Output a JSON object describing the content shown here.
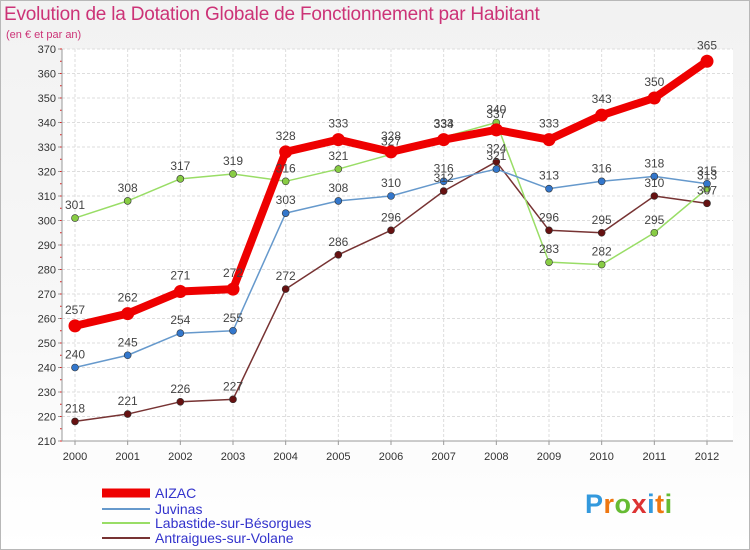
{
  "header": {
    "title": "Evolution de la Dotation Globale de Fonctionnement par Habitant",
    "subtitle": "(en € et par an)"
  },
  "brand": {
    "name": "Proxiti"
  },
  "chart_data": {
    "type": "line",
    "title": "Evolution de la Dotation Globale de Fonctionnement par Habitant",
    "subtitle": "(en € et par an)",
    "xlabel": "",
    "ylabel": "",
    "x": [
      "2000",
      "2001",
      "2002",
      "2003",
      "2004",
      "2005",
      "2006",
      "2007",
      "2008",
      "2009",
      "2010",
      "2011",
      "2012"
    ],
    "ylim": [
      210,
      370
    ],
    "yticks": [
      210,
      220,
      230,
      240,
      250,
      260,
      270,
      280,
      290,
      300,
      310,
      320,
      330,
      340,
      350,
      360,
      370
    ],
    "grid": true,
    "legend_position": "bottom-left",
    "series": [
      {
        "name": "AIZAC",
        "color": "#ee0000",
        "values": [
          257,
          262,
          271,
          272,
          328,
          333,
          328,
          333,
          337,
          333,
          343,
          350,
          365
        ],
        "labels": [
          "257",
          "262",
          "271",
          "272",
          "328",
          "333",
          "328",
          "333",
          "337",
          "333",
          "343",
          "350",
          "365"
        ]
      },
      {
        "name": "Juvinas",
        "color": "#6699cc",
        "values": [
          240,
          245,
          254,
          255,
          303,
          308,
          310,
          316,
          321,
          313,
          316,
          318,
          315
        ],
        "labels": [
          "240",
          "245",
          "254",
          "255",
          "303",
          "308",
          "310",
          "316",
          "321",
          "313",
          "316",
          "318",
          "315"
        ]
      },
      {
        "name": "Labastide-sur-Bésorgues",
        "color": "#99dd66",
        "values": [
          301,
          308,
          317,
          319,
          316,
          321,
          327,
          334,
          340,
          283,
          282,
          295,
          313
        ],
        "labels": [
          "301",
          "308",
          "317",
          "319",
          "316",
          "321",
          "327",
          "334",
          "340",
          "283",
          "282",
          "295",
          "313"
        ]
      },
      {
        "name": "Antraigues-sur-Volane",
        "color": "#773333",
        "values": [
          218,
          221,
          226,
          227,
          272,
          286,
          296,
          312,
          324,
          296,
          295,
          310,
          307
        ],
        "labels": [
          "218",
          "221",
          "226",
          "227",
          "272",
          "286",
          "296",
          "312",
          "324",
          "296",
          "295",
          "310",
          "307"
        ]
      }
    ]
  }
}
